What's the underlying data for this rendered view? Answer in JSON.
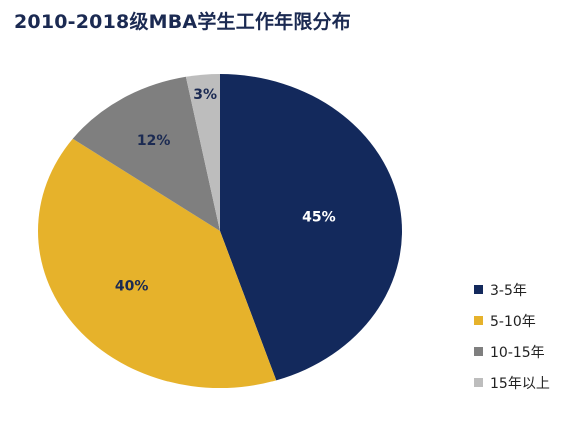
{
  "chart_data": {
    "type": "pie",
    "title": "2010-2018级MBA学生工作年限分布",
    "categories": [
      "3-5年",
      "5-10年",
      "10-15年",
      "15年以上"
    ],
    "values": [
      45,
      40,
      12,
      3
    ],
    "data_labels": [
      "45%",
      "40%",
      "12%",
      "3%"
    ],
    "colors": [
      "#13295c",
      "#e6b22b",
      "#7f7f7f",
      "#bdbdbd"
    ],
    "label_colors": [
      "#ffffff",
      "#1b2a52",
      "#1b2a52",
      "#1b2a52"
    ],
    "legend_position": "bottom-right"
  }
}
